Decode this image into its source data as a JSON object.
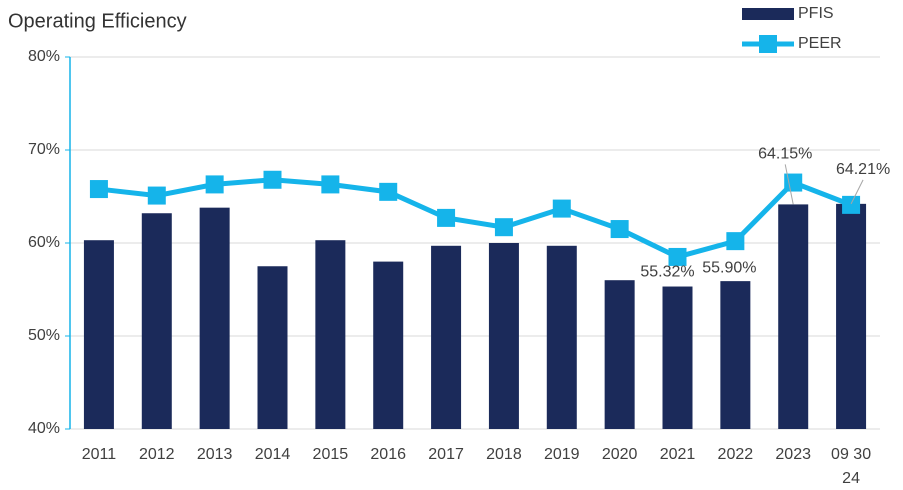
{
  "chart_data": {
    "type": "bar-line",
    "title": "Operating Efficiency",
    "categories": [
      "2011",
      "2012",
      "2013",
      "2014",
      "2015",
      "2016",
      "2017",
      "2018",
      "2019",
      "2020",
      "2021",
      "2022",
      "2023",
      "09 30\n24"
    ],
    "series": [
      {
        "name": "PFIS",
        "type": "bar",
        "color": "#1b2a5a",
        "values": [
          60.3,
          63.2,
          63.8,
          57.5,
          60.3,
          58.0,
          59.7,
          60.0,
          59.7,
          56.0,
          55.32,
          55.9,
          64.15,
          64.21
        ],
        "value_labels": [
          null,
          null,
          null,
          null,
          null,
          null,
          null,
          null,
          null,
          null,
          "55.32%",
          "55.90%",
          "64.15%",
          "64.21%"
        ]
      },
      {
        "name": "PEER",
        "type": "line",
        "color": "#15b4ea",
        "values": [
          65.8,
          65.1,
          66.3,
          66.8,
          66.3,
          65.5,
          62.7,
          61.7,
          63.7,
          61.5,
          58.5,
          60.2,
          66.5,
          64.1
        ]
      }
    ],
    "ylim": [
      40,
      80
    ],
    "yticks": [
      {
        "value": 40,
        "label": "40%"
      },
      {
        "value": 50,
        "label": "50%"
      },
      {
        "value": 60,
        "label": "60%"
      },
      {
        "value": 70,
        "label": "70%"
      },
      {
        "value": 80,
        "label": "80%"
      }
    ],
    "grid": true,
    "legend": "top-right"
  }
}
